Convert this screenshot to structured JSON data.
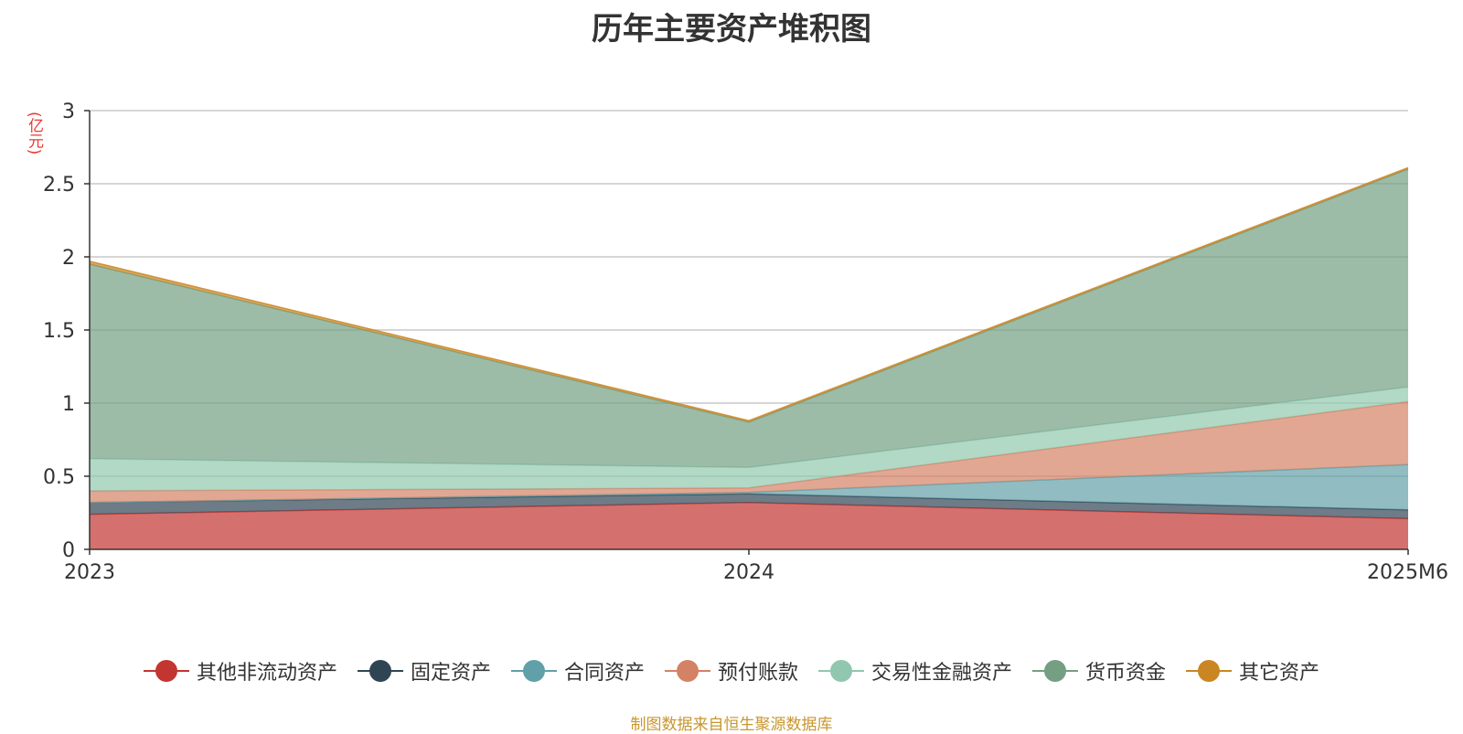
{
  "chart_data": {
    "type": "area",
    "stacked": true,
    "title": "历年主要资产堆积图",
    "ylabel": "(亿元)",
    "xlabel": "",
    "categories": [
      "2023",
      "2024",
      "2025M6"
    ],
    "ylim": [
      0,
      3
    ],
    "yticks": [
      "0",
      "0.5",
      "1",
      "1.5",
      "2",
      "2.5",
      "3"
    ],
    "grid": true,
    "legend_position": "bottom",
    "series": [
      {
        "name": "其他非流动资产",
        "color": "#c23531",
        "values": [
          0.24,
          0.32,
          0.21
        ]
      },
      {
        "name": "固定资产",
        "color": "#2f4554",
        "values": [
          0.08,
          0.06,
          0.06
        ]
      },
      {
        "name": "合同资产",
        "color": "#61a0a8",
        "values": [
          0.0,
          0.01,
          0.31
        ]
      },
      {
        "name": "预付账款",
        "color": "#d48265",
        "values": [
          0.08,
          0.03,
          0.43
        ]
      },
      {
        "name": "交易性金融资产",
        "color": "#91c7ae",
        "values": [
          0.22,
          0.14,
          0.1
        ]
      },
      {
        "name": "货币资金",
        "color": "#749f83",
        "values": [
          1.33,
          0.31,
          1.49
        ]
      },
      {
        "name": "其它资产",
        "color": "#ca8622",
        "values": [
          0.02,
          0.01,
          0.01
        ]
      }
    ],
    "source": "制图数据来自恒生聚源数据库"
  }
}
